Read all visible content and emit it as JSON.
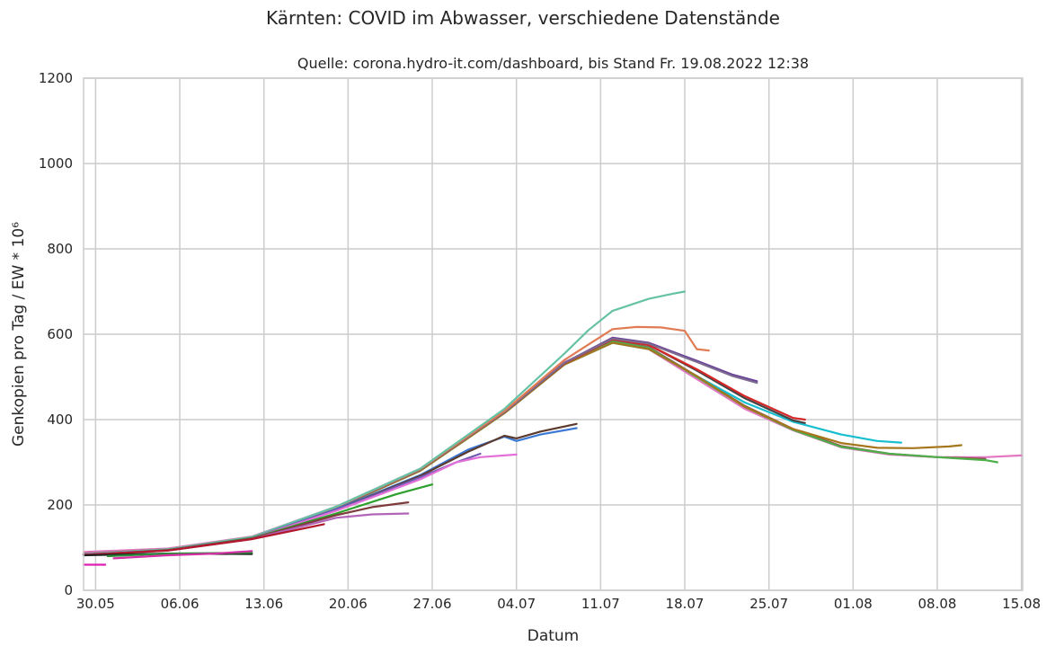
{
  "chart_data": {
    "type": "line",
    "title": "Kärnten: COVID im Abwasser, verschiedene Datenstände",
    "subtitle": "Quelle: corona.hydro-it.com/dashboard, bis Stand Fr. 19.08.2022 12:38",
    "xlabel": "Datum",
    "ylabel": "Genkopien pro Tag / EW * 10⁶",
    "x_tick_labels": [
      "30.05",
      "06.06",
      "13.06",
      "20.06",
      "27.06",
      "04.07",
      "11.07",
      "18.07",
      "25.07",
      "01.08",
      "08.08",
      "15.08"
    ],
    "y_ticks": [
      0,
      200,
      400,
      600,
      800,
      1000,
      1200
    ],
    "ylim": [
      0,
      1200
    ],
    "x_range_days": [
      -1,
      77.1
    ],
    "x_origin": "2022-05-30",
    "grid": true,
    "legend": "none",
    "series": [
      {
        "color": "#e377c2",
        "points": [
          [
            -1,
            90
          ],
          [
            6,
            98
          ],
          [
            13,
            126
          ],
          [
            20,
            196
          ],
          [
            27,
            285
          ],
          [
            34,
            420
          ],
          [
            39,
            535
          ],
          [
            43,
            582
          ],
          [
            46,
            565
          ],
          [
            50,
            495
          ],
          [
            54,
            425
          ],
          [
            58,
            375
          ],
          [
            62,
            335
          ],
          [
            66,
            318
          ],
          [
            70,
            312
          ],
          [
            74,
            312
          ],
          [
            77,
            316
          ]
        ]
      },
      {
        "color": "#8c564b",
        "points": [
          [
            -1,
            86
          ],
          [
            6,
            96
          ],
          [
            13,
            124
          ],
          [
            20,
            194
          ],
          [
            27,
            283
          ],
          [
            34,
            418
          ],
          [
            39,
            532
          ],
          [
            43,
            584
          ],
          [
            46,
            570
          ],
          [
            50,
            502
          ],
          [
            54,
            432
          ],
          [
            58,
            378
          ],
          [
            62,
            338
          ],
          [
            66,
            320
          ],
          [
            70,
            312
          ],
          [
            74,
            308
          ]
        ]
      },
      {
        "color": "#4daf4a",
        "points": [
          [
            -1,
            85
          ],
          [
            6,
            95
          ],
          [
            13,
            123
          ],
          [
            20,
            193
          ],
          [
            27,
            281
          ],
          [
            34,
            416
          ],
          [
            39,
            530
          ],
          [
            43,
            583
          ],
          [
            46,
            568
          ],
          [
            50,
            500
          ],
          [
            54,
            430
          ],
          [
            58,
            376
          ],
          [
            62,
            336
          ],
          [
            66,
            320
          ],
          [
            70,
            312
          ],
          [
            74,
            305
          ],
          [
            75,
            300
          ]
        ]
      },
      {
        "color": "#17becf",
        "points": [
          [
            -1,
            84
          ],
          [
            6,
            94
          ],
          [
            13,
            122
          ],
          [
            20,
            192
          ],
          [
            27,
            280
          ],
          [
            34,
            415
          ],
          [
            39,
            529
          ],
          [
            43,
            580
          ],
          [
            46,
            565
          ],
          [
            50,
            502
          ],
          [
            54,
            440
          ],
          [
            58,
            395
          ],
          [
            62,
            365
          ],
          [
            65,
            350
          ],
          [
            67,
            346
          ]
        ]
      },
      {
        "color": "#a6761d",
        "points": [
          [
            -1,
            84
          ],
          [
            6,
            94
          ],
          [
            13,
            122
          ],
          [
            20,
            192
          ],
          [
            27,
            280
          ],
          [
            34,
            415
          ],
          [
            39,
            529
          ],
          [
            43,
            580
          ],
          [
            46,
            565
          ],
          [
            50,
            502
          ],
          [
            54,
            430
          ],
          [
            58,
            378
          ],
          [
            62,
            345
          ],
          [
            65,
            334
          ],
          [
            68,
            333
          ],
          [
            71,
            337
          ],
          [
            72,
            340
          ]
        ]
      },
      {
        "color": "#444444",
        "points": [
          [
            -1,
            83
          ],
          [
            6,
            95
          ],
          [
            13,
            124
          ],
          [
            20,
            194
          ],
          [
            27,
            283
          ],
          [
            34,
            418
          ],
          [
            39,
            532
          ],
          [
            43,
            588
          ],
          [
            46,
            575
          ],
          [
            50,
            515
          ],
          [
            54,
            450
          ],
          [
            58,
            398
          ],
          [
            59,
            392
          ]
        ]
      },
      {
        "color": "#d62728",
        "points": [
          [
            -1,
            84
          ],
          [
            6,
            95
          ],
          [
            13,
            124
          ],
          [
            20,
            194
          ],
          [
            27,
            283
          ],
          [
            34,
            418
          ],
          [
            39,
            532
          ],
          [
            43,
            588
          ],
          [
            46,
            575
          ],
          [
            50,
            518
          ],
          [
            54,
            455
          ],
          [
            58,
            404
          ],
          [
            59,
            400
          ]
        ]
      },
      {
        "color": "#6a3d9a",
        "points": [
          [
            -1,
            84
          ],
          [
            6,
            95
          ],
          [
            13,
            124
          ],
          [
            20,
            194
          ],
          [
            27,
            283
          ],
          [
            34,
            418
          ],
          [
            39,
            533
          ],
          [
            43,
            592
          ],
          [
            46,
            580
          ],
          [
            50,
            538
          ],
          [
            53,
            505
          ],
          [
            55,
            490
          ]
        ]
      },
      {
        "color": "#7b6b8f",
        "points": [
          [
            -1,
            84
          ],
          [
            6,
            95
          ],
          [
            13,
            124
          ],
          [
            20,
            194
          ],
          [
            27,
            283
          ],
          [
            34,
            418
          ],
          [
            39,
            533
          ],
          [
            43,
            590
          ],
          [
            46,
            578
          ],
          [
            50,
            535
          ],
          [
            53,
            502
          ],
          [
            55,
            486
          ]
        ]
      },
      {
        "color": "#e07b54",
        "points": [
          [
            -1,
            85
          ],
          [
            6,
            96
          ],
          [
            13,
            124
          ],
          [
            20,
            195
          ],
          [
            27,
            284
          ],
          [
            34,
            420
          ],
          [
            39,
            540
          ],
          [
            43,
            612
          ],
          [
            45,
            617
          ],
          [
            47,
            616
          ],
          [
            49,
            608
          ],
          [
            50,
            565
          ],
          [
            51,
            562
          ]
        ]
      },
      {
        "color": "#66c2a5",
        "points": [
          [
            -1,
            85
          ],
          [
            6,
            96
          ],
          [
            13,
            125
          ],
          [
            20,
            196
          ],
          [
            27,
            285
          ],
          [
            34,
            425
          ],
          [
            39,
            555
          ],
          [
            41,
            610
          ],
          [
            43,
            655
          ],
          [
            46,
            683
          ],
          [
            48,
            695
          ],
          [
            49,
            700
          ]
        ]
      },
      {
        "color": "#3a78d4",
        "points": [
          [
            -1,
            84
          ],
          [
            6,
            94
          ],
          [
            13,
            122
          ],
          [
            20,
            190
          ],
          [
            27,
            270
          ],
          [
            31,
            330
          ],
          [
            34,
            360
          ],
          [
            35,
            350
          ],
          [
            37,
            365
          ],
          [
            40,
            380
          ]
        ]
      },
      {
        "color": "#5d3a2e",
        "points": [
          [
            -1,
            83
          ],
          [
            6,
            94
          ],
          [
            13,
            122
          ],
          [
            20,
            188
          ],
          [
            27,
            268
          ],
          [
            31,
            325
          ],
          [
            34,
            362
          ],
          [
            35,
            356
          ],
          [
            37,
            372
          ],
          [
            40,
            390
          ]
        ]
      },
      {
        "color": "#6f5bb0",
        "points": [
          [
            -1,
            84
          ],
          [
            6,
            94
          ],
          [
            13,
            122
          ],
          [
            20,
            188
          ],
          [
            27,
            265
          ],
          [
            30,
            300
          ],
          [
            32,
            320
          ]
        ]
      },
      {
        "color": "#e36fd8",
        "points": [
          [
            -1,
            84
          ],
          [
            6,
            94
          ],
          [
            13,
            122
          ],
          [
            20,
            186
          ],
          [
            27,
            260
          ],
          [
            30,
            300
          ],
          [
            32,
            312
          ],
          [
            35,
            318
          ]
        ]
      },
      {
        "color": "#2ca02c",
        "points": [
          [
            -1,
            83
          ],
          [
            6,
            94
          ],
          [
            13,
            122
          ],
          [
            20,
            180
          ],
          [
            25,
            225
          ],
          [
            28,
            248
          ]
        ]
      },
      {
        "color": "#7f3b3b",
        "points": [
          [
            -1,
            83
          ],
          [
            6,
            94
          ],
          [
            13,
            121
          ],
          [
            20,
            176
          ],
          [
            23,
            195
          ],
          [
            26,
            206
          ]
        ]
      },
      {
        "color": "#b265b8",
        "points": [
          [
            -1,
            83
          ],
          [
            6,
            93
          ],
          [
            13,
            120
          ],
          [
            20,
            170
          ],
          [
            23,
            178
          ],
          [
            26,
            180
          ]
        ]
      },
      {
        "color": "#b2182b",
        "points": [
          [
            -1,
            83
          ],
          [
            6,
            93
          ],
          [
            13,
            120
          ],
          [
            17,
            143
          ],
          [
            19,
            155
          ]
        ]
      },
      {
        "color": "#222222",
        "points": [
          [
            -1,
            82
          ],
          [
            6,
            86
          ],
          [
            13,
            85
          ]
        ]
      },
      {
        "color": "#2b8c3a",
        "points": [
          [
            1,
            80
          ],
          [
            6,
            86
          ],
          [
            13,
            88
          ]
        ]
      },
      {
        "color": "#d62fa6",
        "points": [
          [
            1.5,
            75
          ],
          [
            6,
            82
          ],
          [
            10,
            86
          ],
          [
            13,
            92
          ]
        ]
      },
      {
        "color": "#e01fb4",
        "points": [
          [
            -1,
            60
          ],
          [
            0.8,
            60
          ]
        ]
      }
    ]
  }
}
